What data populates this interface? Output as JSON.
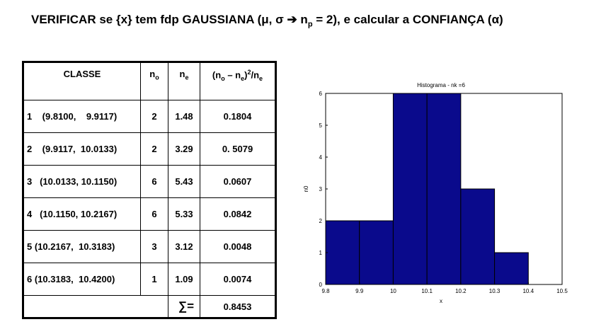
{
  "title": {
    "part1": "VERIFICAR se {x} tem fdp GAUSSIANA (μ, σ ➔ n",
    "sub": "p",
    "part2": " = 2), e calcular a CONFIANÇA (α)"
  },
  "table": {
    "headers": {
      "classe": "CLASSE",
      "no_main": "n",
      "no_sub": "o",
      "ne_main": "n",
      "ne_sub": "e",
      "chi_open": "(n",
      "chi_sub1": "o",
      "chi_mid": " – n",
      "chi_sub2": "e",
      "chi_close": ")",
      "chi_sup": "2",
      "chi_div": "/n",
      "chi_sub3": "e"
    },
    "rows": [
      {
        "classe": "1    (9.8100,    9.9117)",
        "no": "2",
        "ne": "1.48",
        "chi": "0.1804"
      },
      {
        "classe": "2    (9.9117,  10.0133)",
        "no": "2",
        "ne": "3.29",
        "chi": "0. 5079"
      },
      {
        "classe": "3   (10.0133, 10.1150)",
        "no": "6",
        "ne": "5.43",
        "chi": "0.0607"
      },
      {
        "classe": "4   (10.1150, 10.2167)",
        "no": "6",
        "ne": "5.33",
        "chi": "0.0842"
      },
      {
        "classe": "5 (10.2167,  10.3183)",
        "no": "3",
        "ne": "3.12",
        "chi": "0.0048"
      },
      {
        "classe": "6 (10.3183,  10.4200)",
        "no": "1",
        "ne": "1.09",
        "chi": "0.0074"
      }
    ],
    "sum_label": "∑=",
    "sum_value": "0.8453"
  },
  "chart_data": {
    "type": "bar",
    "title": "Histograma - nk =6",
    "xlabel": "x",
    "ylabel": "n0",
    "xlim": [
      9.8,
      10.5
    ],
    "ylim": [
      0,
      6
    ],
    "xticks": [
      "9.8",
      "9.9",
      "10",
      "10.1",
      "10.2",
      "10.3",
      "10.4",
      "10.5"
    ],
    "yticks": [
      "0",
      "1",
      "2",
      "3",
      "4",
      "5",
      "6"
    ],
    "bins": [
      {
        "x0": 9.8,
        "x1": 9.9,
        "value": 2
      },
      {
        "x0": 9.9,
        "x1": 10.0,
        "value": 2
      },
      {
        "x0": 10.0,
        "x1": 10.1,
        "value": 6
      },
      {
        "x0": 10.1,
        "x1": 10.2,
        "value": 6
      },
      {
        "x0": 10.2,
        "x1": 10.3,
        "value": 3
      },
      {
        "x0": 10.3,
        "x1": 10.4,
        "value": 1
      }
    ],
    "bar_color": "#0a0a8c",
    "grid": false
  }
}
